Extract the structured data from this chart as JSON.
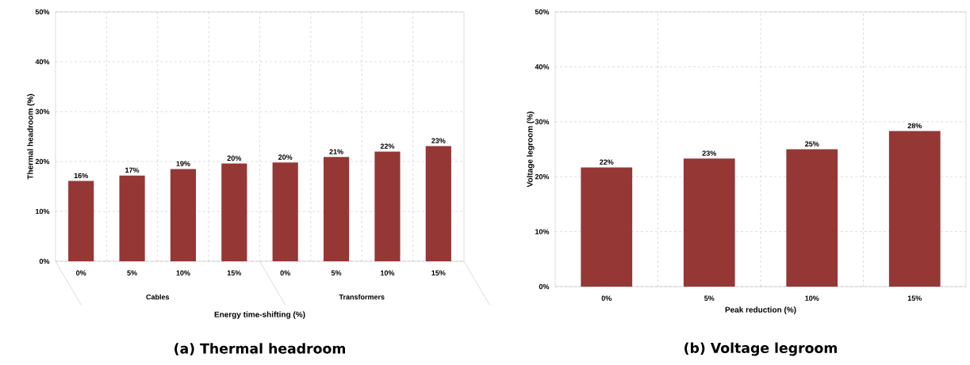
{
  "chart_data": [
    {
      "type": "bar",
      "title": "(a) Thermal headroom",
      "xlabel": "Energy time-shifting (%)",
      "ylabel": "Thermal headroom (%)",
      "categories": [
        "0%",
        "5%",
        "10%",
        "15%",
        "0%",
        "5%",
        "10%",
        "15%"
      ],
      "values": [
        16.1,
        17.2,
        18.5,
        19.6,
        19.8,
        20.9,
        22.0,
        23.1
      ],
      "value_labels": [
        "16%",
        "17%",
        "19%",
        "20%",
        "20%",
        "21%",
        "22%",
        "23%"
      ],
      "color": "#953735",
      "ylim": [
        0,
        50
      ],
      "yticks": [
        {
          "value": 0,
          "label": "0%"
        },
        {
          "value": 10,
          "label": "10%"
        },
        {
          "value": 20,
          "label": "20%"
        },
        {
          "value": 30,
          "label": "30%"
        },
        {
          "value": 40,
          "label": "40%"
        },
        {
          "value": 50,
          "label": "50%"
        }
      ],
      "annotations": [
        "Cables",
        "Transformers"
      ],
      "grid": true
    },
    {
      "type": "bar",
      "title": "(b) Voltage legroom",
      "xlabel": "Peak reduction (%)",
      "ylabel": "Voltage legroom (%)",
      "categories": [
        "0%",
        "5%",
        "10%",
        "15%"
      ],
      "values": [
        21.7,
        23.3,
        25.0,
        28.3
      ],
      "value_labels": [
        "22%",
        "23%",
        "25%",
        "28%"
      ],
      "color": "#953735",
      "ylim": [
        0,
        50
      ],
      "yticks": [
        {
          "value": 0,
          "label": "0%"
        },
        {
          "value": 10,
          "label": "10%"
        },
        {
          "value": 20,
          "label": "20%"
        },
        {
          "value": 30,
          "label": "30%"
        },
        {
          "value": 40,
          "label": "40%"
        },
        {
          "value": 50,
          "label": "50%"
        }
      ],
      "grid": true
    }
  ]
}
